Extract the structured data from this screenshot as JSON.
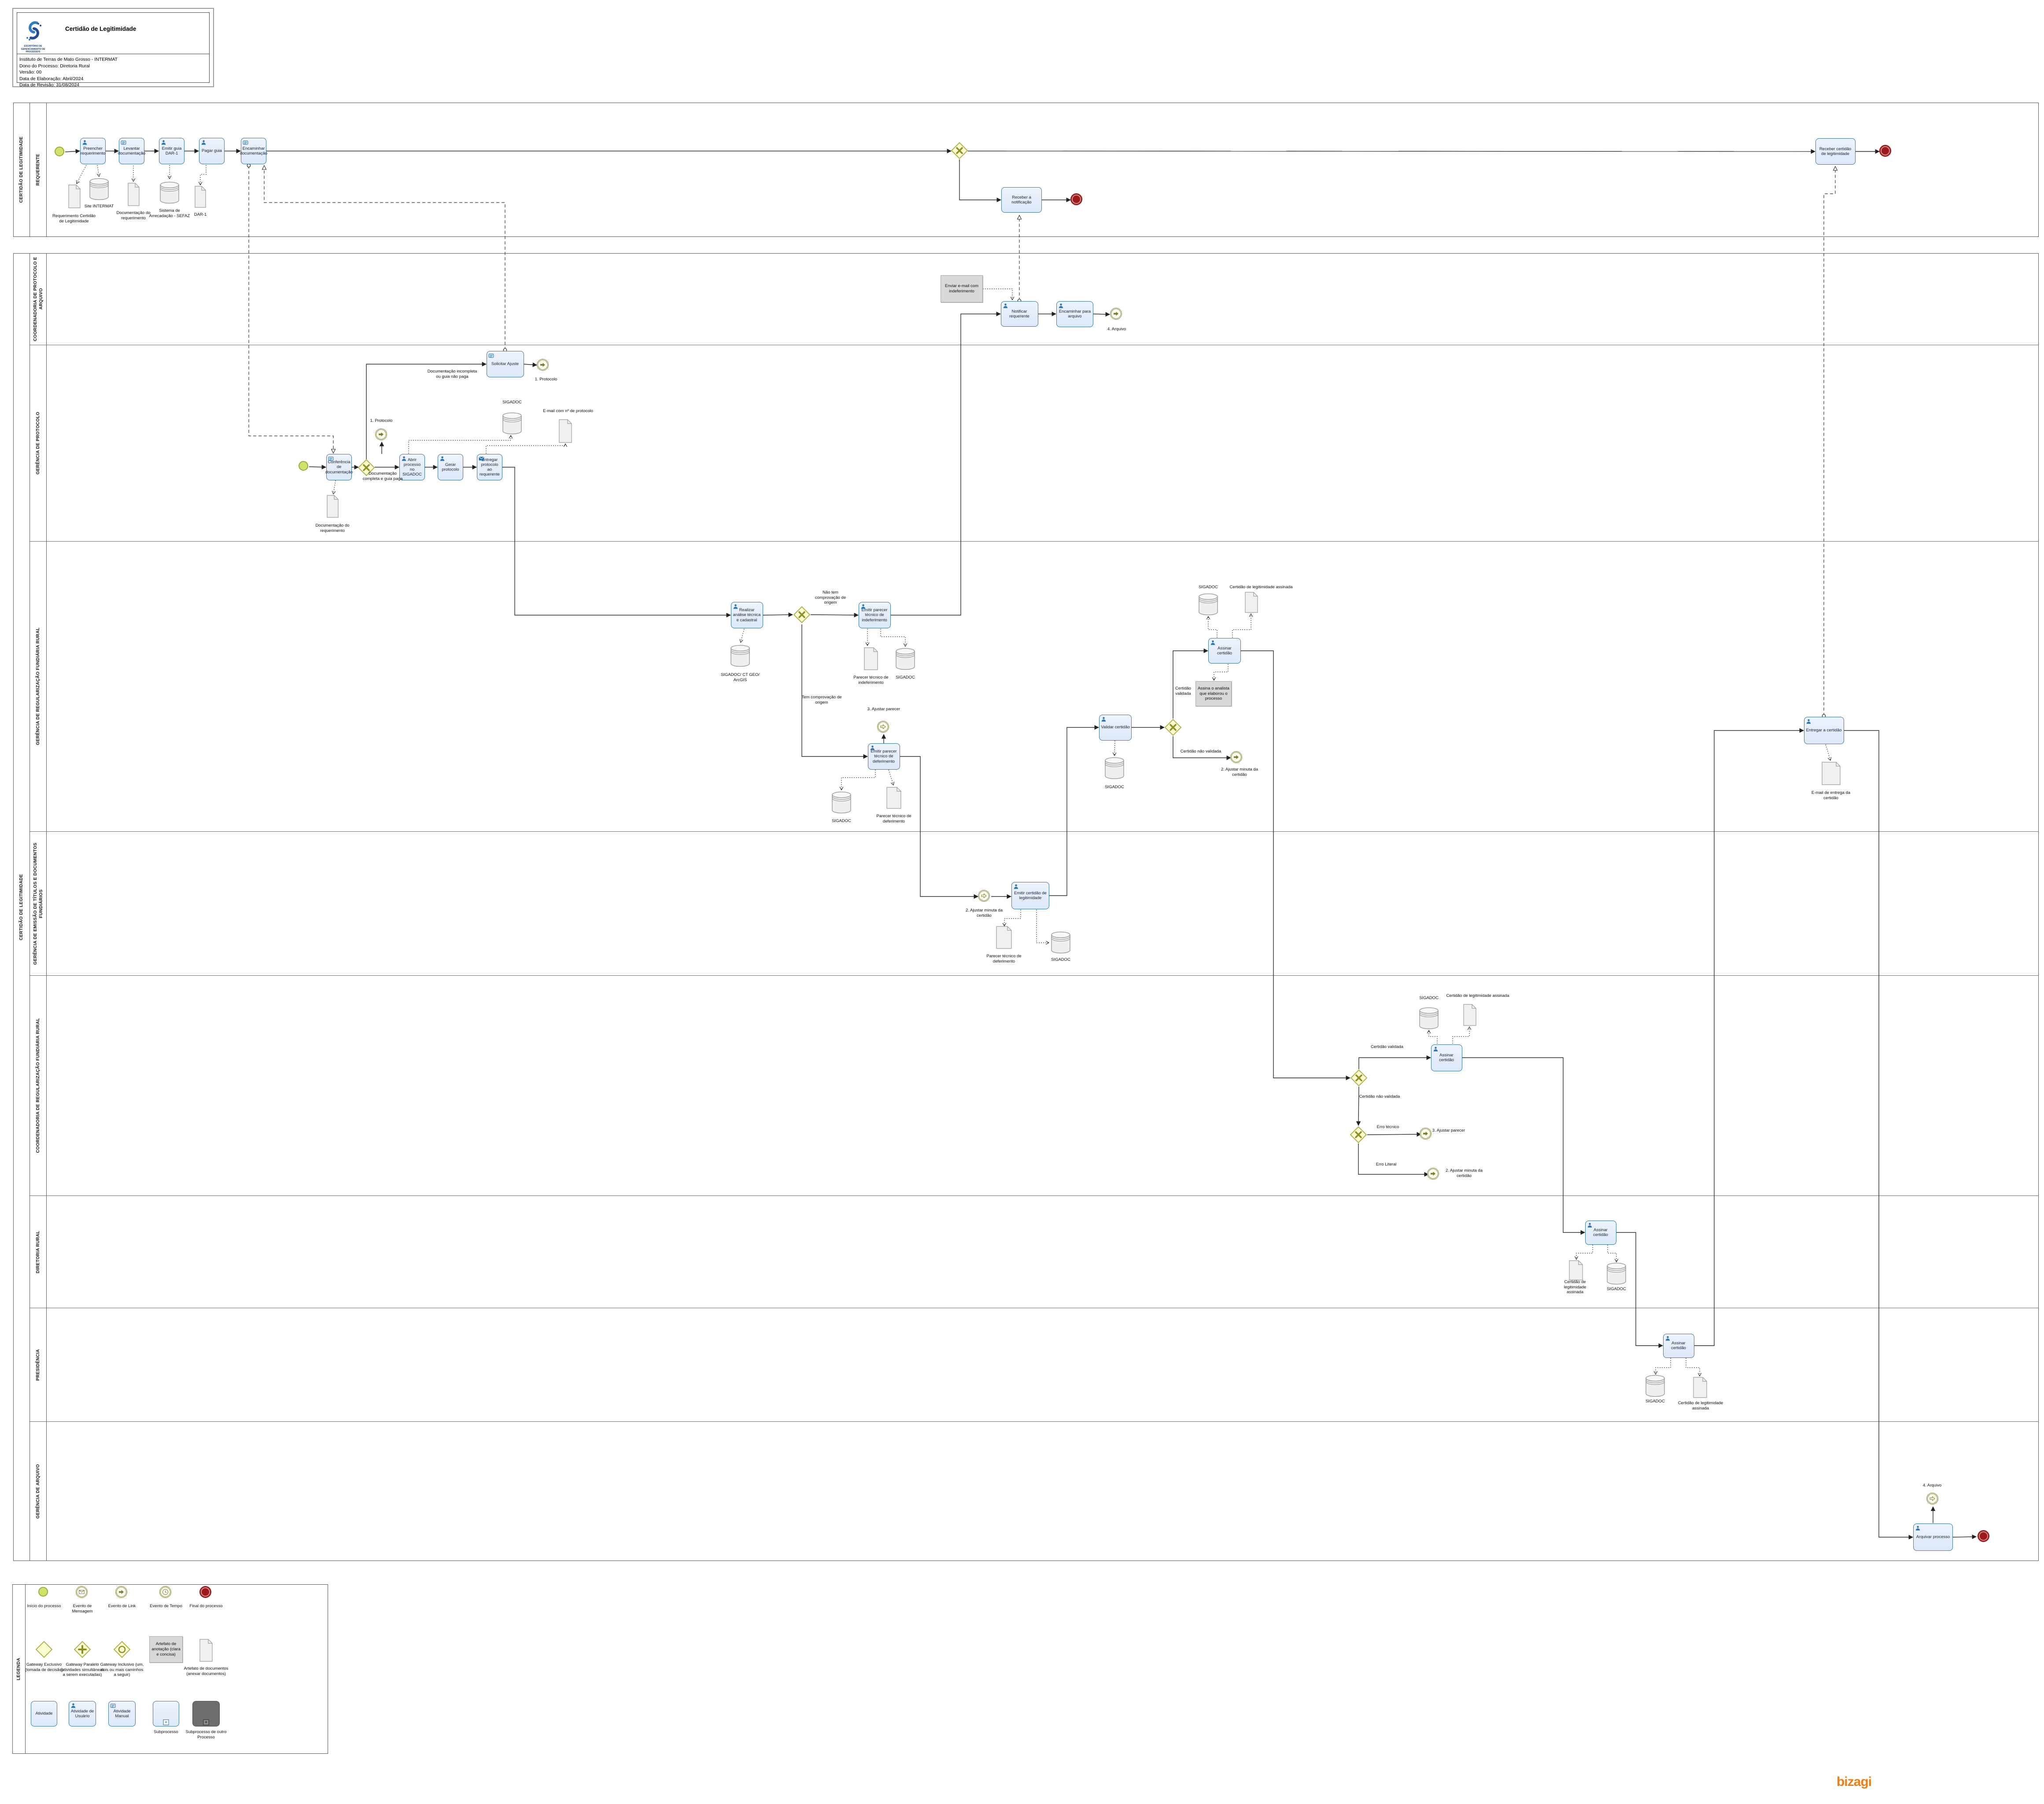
{
  "header": {
    "title": "Certidão de Legitimidade",
    "logo_caption": "ESCRITÓRIO DE GERENCIAMENTO DE PROCESSOS",
    "info_lines": [
      "Instituto de Terras de Mato Grosso - INTERMAT",
      "Dono do Processo: Diretoria Rural",
      "Versão: 00",
      "Data de Elaboração: Abril/2024",
      "Data de Revisão: 31/08/2024"
    ]
  },
  "pools": {
    "pool1": {
      "outer": "CERTIDÃO DE LEGITIMIDADE",
      "lane": "REQUERENTE"
    },
    "pool2": {
      "outer": "CERTIDÃO DE LEGITIMIDADE",
      "lanes": [
        "COORDENADORIA DE PROTOCOLO E ARQUIVO",
        "GERÊNCIA DE PROTOCOLO",
        "GERÊNCIA DE REGULARIZAÇÃO FUNDIÁRIA RURAL",
        "GERÊNCIA DE EMISSÃO DE  TÍTULOS E DOCUMENTOS FUNDIÁRIOS",
        "COORDENADORIA DE REGULARIZAÇÃO FUNDIÁRIA RURAL",
        "DIRETORIA RURAL",
        "PRESIDÊNCIA",
        "GERÊNCIA DE ARQUIVO"
      ]
    }
  },
  "nodes": {
    "t_preencher": "Preencher requerimento",
    "t_levantar": "Levantar documentação",
    "t_emitir_guia": "Emitir  guia DAR-1",
    "t_pagar": "Pagar guia",
    "t_encaminhar": "Encaminhar documentação",
    "t_receber_notif": "Receber  a notificação",
    "t_receber_cert": "Receber certidão de legitimidade",
    "t_notificar": "Notificar requerente",
    "t_enc_arquivo": "Encaminhar para arquivo",
    "t_conf": "Conferência de documentação",
    "t_solicitar": "Solicitar Ajuste",
    "t_abrir": "Abrir processo no SIGADOC",
    "t_gerar": "Gerar protocolo",
    "t_entregar_prot": "Entregar protocolo ao requerente",
    "t_analise": "Realizar análise técnica e cadastral",
    "t_indef": "Emitir parecer técnico de indeferimento",
    "t_defer": "Emitir parecer técnico de deferimento",
    "t_validar": "Validar certidão",
    "t_assinar1": "Assinar certidão",
    "t_assinar2": "Assinar certidão",
    "t_assinar3": "Assinar certidão",
    "t_assinar4": "Assinar certidão",
    "t_emitir_cert": "Emitir certidão de legitimidade",
    "t_entregar_cert": "Entregar a certidão",
    "t_arquivar": "Arquivar processo",
    "ann_email": "Enviar e-mail com indeferimento",
    "ann_assina": "Assina o analista que elaborou o processo",
    "lbl_req_cert": "Requerimento Certidão de Legitimidade",
    "lbl_site": "Site INTERMAT",
    "lbl_docreq1": "Documentação do requerimento",
    "lbl_sefaz": "Sistema de Arrecadação - SEFAZ",
    "lbl_dar": "DAR-1",
    "lbl_4arquivo_t": "4. Arquivo",
    "lbl_4arquivo_c": "4. Arquivo",
    "lbl_1proto_c": "1. Protocolo",
    "lbl_1proto_t": "1. Protocolo",
    "lbl_doc_incompleta": "Documentação incompleta ou guia não paga",
    "lbl_doc_completa": "Documentação completa e guia paga",
    "lbl_sigadoc1": "SIGADOC",
    "lbl_sigadoc2": "SIGADOC",
    "lbl_sigadoc3": "SIGADOC",
    "lbl_sigadoc4": "SIGADOC",
    "lbl_sigadoc5": "SIGADOC",
    "lbl_sigadoc6": "SIGADOC",
    "lbl_sigadoc7": "SIGADOC",
    "lbl_sigadoc8": "SIGADOC",
    "lbl_sigadoc9": "SIGADOC",
    "lbl_docreq2": "Documentação do requerimento",
    "lbl_email_prot": "E-mail com nº de protocolo",
    "lbl_sig_geo": "SIGADOC/ CT GEO/ ArcGIS",
    "lbl_nao_comprova": "Não tem comprovação de origem",
    "lbl_tem_comprova": "Tem comprovação de origem",
    "lbl_parecer_indef": "Parecer técnico de indeferimento",
    "lbl_parecer_defer": "Parecer técnico de deferimento",
    "lbl_parecer_defer2": "Parecer técnico de deferimento",
    "lbl_3ajustar_c": "3. Ajustar parecer",
    "lbl_3ajustar_t": "3. Ajustar parecer",
    "lbl_2ajustar_c": "2. Ajustar minuta da certidão",
    "lbl_2ajustar_t1": "2. Ajustar minuta da certidão",
    "lbl_2ajustar_t2": "2. Ajustar minuta da certidão",
    "lbl_cert_validada": "Certidão validada",
    "lbl_cert_validada2": "Certidão validada",
    "lbl_cert_nao": "Certidão não validada",
    "lbl_cert_nao2": "Certidão não validada",
    "lbl_cert_ass1": "Certidão de legitimidade assinada",
    "lbl_cert_ass2": "Certidão de legitimidade assinada",
    "lbl_cert_ass3": "Certidão de legitimidade assinada",
    "lbl_cert_ass4": "Certidão de legitimidade assinada",
    "lbl_erro_tec": "Erro técnico",
    "lbl_erro_lit": "Erro Literal",
    "lbl_email_entrega": "E-mail de entrega da certidão",
    "lg_inicio": "Início do processo",
    "lg_msg": "Evento de Mensagem",
    "lg_link": "Evento de Link",
    "lg_tempo": "Evento de Tempo",
    "lg_final": "Final do processo",
    "lg_gexc": "Gateway  Exclusivo (tomada de decisão)",
    "lg_gpar": "Gateway  Paralelo (atividades simultâneas a serem executadas)",
    "lg_ginc": "Gateway  Inclusivo (um, dois ou mais caminhos a seguir)",
    "lg_anot": "Artefato de anotação (clara e concisa)",
    "lg_docs": "Artefato de documentos (anexar documentos)",
    "lg_ativ": "Atividade",
    "lg_ativu": "Atividade de Usuário",
    "lg_ativm": "Atividade Manual",
    "lg_sub": "Subprocesso",
    "lg_subo": "Subprocesso de outro Processo"
  },
  "legend": {
    "title": "LEGENDA"
  },
  "footer": {
    "brand": "bizagi"
  }
}
